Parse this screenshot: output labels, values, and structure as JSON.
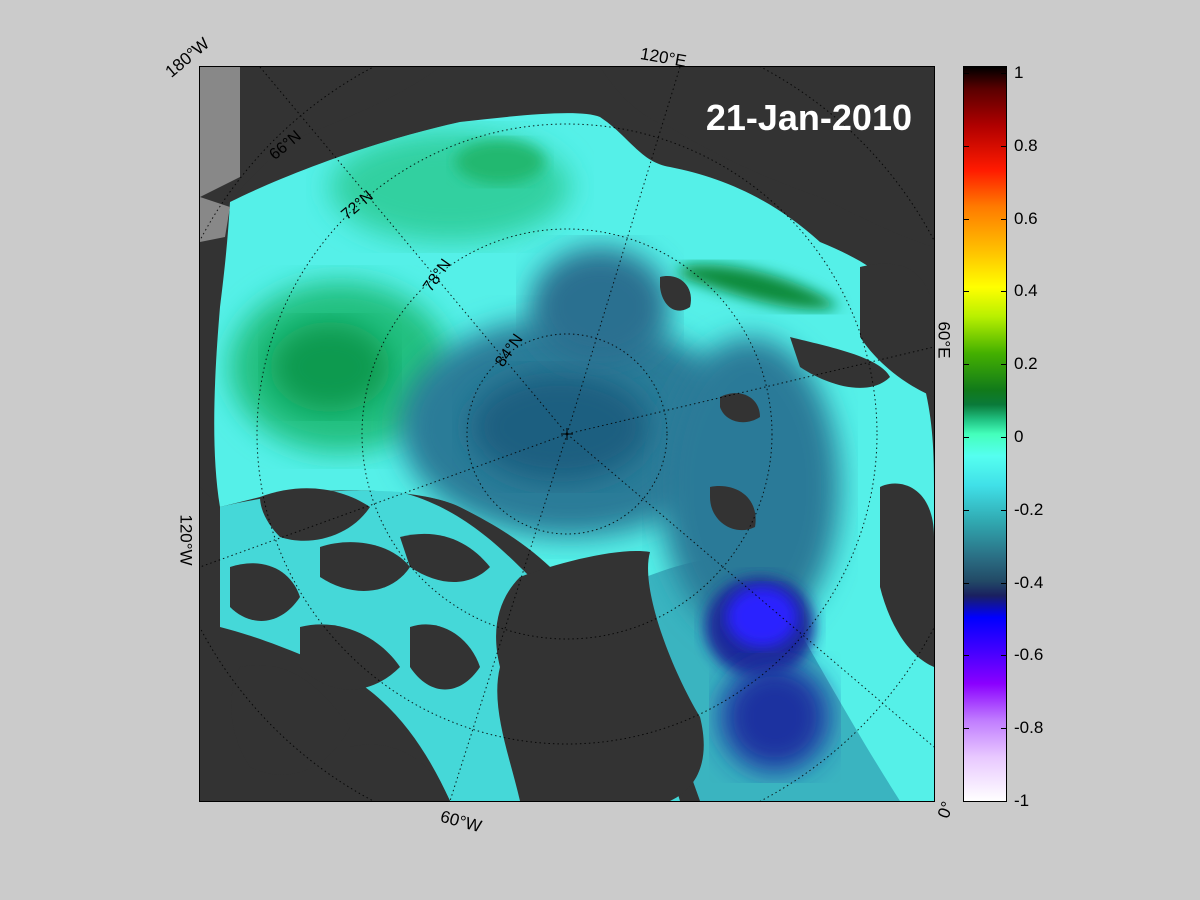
{
  "date_label": "21-Jan-2010",
  "longitude_labels": [
    "180°W",
    "120°E",
    "60°E",
    "0°",
    "60°W",
    "120°W"
  ],
  "latitude_labels": [
    "66°N",
    "72°N",
    "78°N",
    "84°N"
  ],
  "colorbar": {
    "ticks": [
      "1",
      "0.8",
      "0.6",
      "0.4",
      "0.2",
      "0",
      "-0.2",
      "-0.4",
      "-0.6",
      "-0.8",
      "-1"
    ],
    "range": [
      -1,
      1
    ]
  },
  "colors": {
    "land": "#333333",
    "background": "#cbcbcb",
    "ocean_base": "#55f0e8"
  }
}
